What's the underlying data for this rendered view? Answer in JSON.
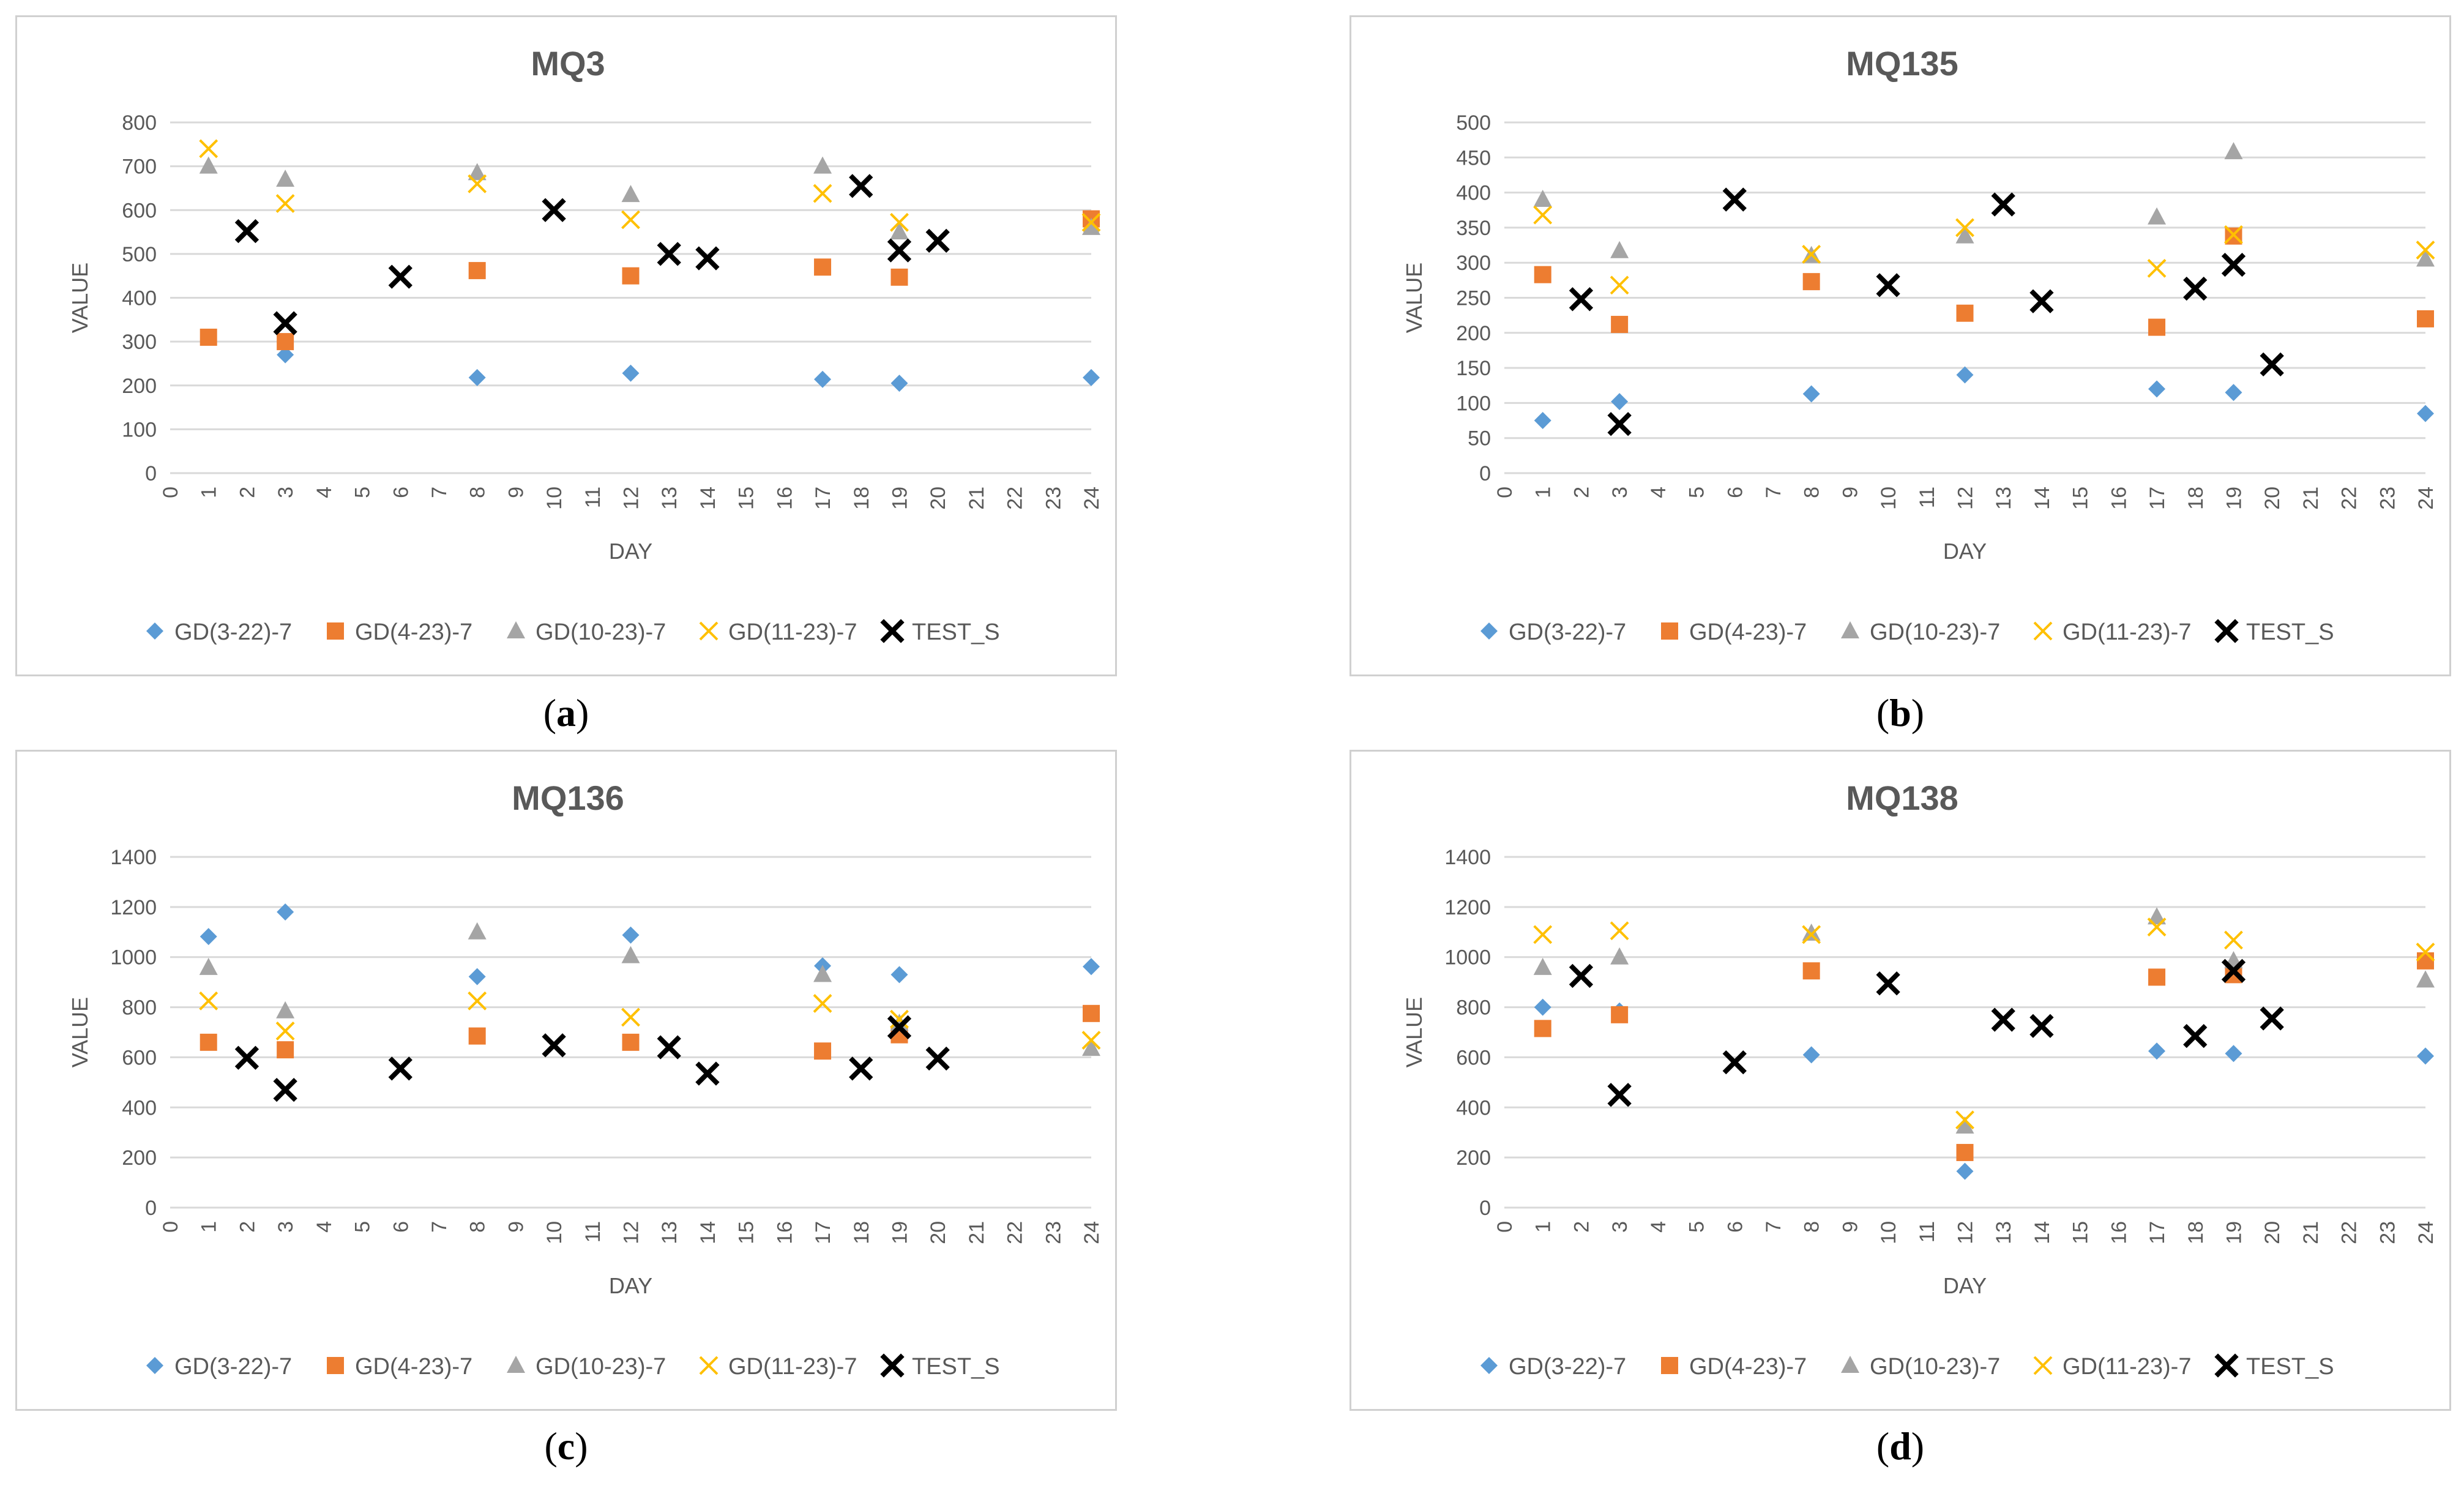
{
  "colors": {
    "series": [
      "#5B9BD5",
      "#ED7D31",
      "#A5A5A5",
      "#FFC000",
      "#000000"
    ],
    "grid": "#d9d9d9",
    "text": "#595959"
  },
  "chart_data": [
    {
      "type": "scatter",
      "caption_letter": "a",
      "title": "MQ3",
      "xlabel": "DAY",
      "ylabel": "VALUE",
      "xlim": [
        0,
        24
      ],
      "ylim": [
        0,
        800
      ],
      "ystep": 100,
      "legend_position": "bottom",
      "series": [
        {
          "name": "GD(3-22)-7",
          "marker": "diamond",
          "x": [
            3,
            8,
            12,
            17,
            19,
            24
          ],
          "y": [
            270,
            218,
            228,
            214,
            205,
            218
          ]
        },
        {
          "name": "GD(4-23)-7",
          "marker": "square",
          "x": [
            1,
            3,
            8,
            12,
            17,
            19,
            24
          ],
          "y": [
            310,
            300,
            462,
            450,
            470,
            447,
            580
          ]
        },
        {
          "name": "GD(10-23)-7",
          "marker": "triangle",
          "x": [
            1,
            3,
            8,
            12,
            17,
            19,
            24
          ],
          "y": [
            700,
            670,
            685,
            635,
            700,
            550,
            560
          ]
        },
        {
          "name": "GD(11-23)-7",
          "marker": "x",
          "x": [
            1,
            3,
            8,
            12,
            17,
            19,
            24
          ],
          "y": [
            740,
            615,
            660,
            578,
            638,
            572,
            572
          ]
        },
        {
          "name": "TEST_S",
          "marker": "cross",
          "x": [
            2,
            3,
            6,
            10,
            13,
            14,
            18,
            19,
            20
          ],
          "y": [
            552,
            342,
            448,
            600,
            500,
            490,
            655,
            508,
            530
          ]
        }
      ]
    },
    {
      "type": "scatter",
      "caption_letter": "b",
      "title": "MQ135",
      "xlabel": "DAY",
      "ylabel": "VALUE",
      "xlim": [
        0,
        24
      ],
      "ylim": [
        0,
        500
      ],
      "ystep": 50,
      "legend_position": "bottom",
      "series": [
        {
          "name": "GD(3-22)-7",
          "marker": "diamond",
          "x": [
            1,
            3,
            8,
            12,
            17,
            19,
            24
          ],
          "y": [
            75,
            102,
            113,
            140,
            120,
            115,
            85
          ]
        },
        {
          "name": "GD(4-23)-7",
          "marker": "square",
          "x": [
            1,
            3,
            8,
            12,
            17,
            19,
            24
          ],
          "y": [
            283,
            212,
            273,
            228,
            208,
            338,
            220
          ]
        },
        {
          "name": "GD(10-23)-7",
          "marker": "triangle",
          "x": [
            1,
            3,
            8,
            12,
            17,
            19,
            24
          ],
          "y": [
            390,
            317,
            310,
            338,
            365,
            458,
            305
          ]
        },
        {
          "name": "GD(11-23)-7",
          "marker": "x",
          "x": [
            1,
            3,
            8,
            12,
            17,
            19,
            24
          ],
          "y": [
            368,
            268,
            312,
            350,
            292,
            340,
            318
          ]
        },
        {
          "name": "TEST_S",
          "marker": "cross",
          "x": [
            2,
            3,
            6,
            10,
            13,
            14,
            18,
            19,
            20
          ],
          "y": [
            248,
            70,
            390,
            268,
            383,
            245,
            263,
            297,
            155
          ]
        }
      ]
    },
    {
      "type": "scatter",
      "caption_letter": "c",
      "title": "MQ136",
      "xlabel": "DAY",
      "ylabel": "VALUE",
      "xlim": [
        0,
        24
      ],
      "ylim": [
        0,
        1400
      ],
      "ystep": 200,
      "legend_position": "bottom",
      "series": [
        {
          "name": "GD(3-22)-7",
          "marker": "diamond",
          "x": [
            1,
            3,
            8,
            12,
            17,
            19,
            24
          ],
          "y": [
            1082,
            1180,
            922,
            1088,
            965,
            930,
            962
          ]
        },
        {
          "name": "GD(4-23)-7",
          "marker": "square",
          "x": [
            1,
            3,
            8,
            12,
            17,
            19,
            24
          ],
          "y": [
            660,
            630,
            685,
            660,
            625,
            690,
            775
          ]
        },
        {
          "name": "GD(10-23)-7",
          "marker": "triangle",
          "x": [
            1,
            3,
            8,
            12,
            17,
            19,
            24
          ],
          "y": [
            958,
            785,
            1100,
            1005,
            930,
            735,
            635
          ]
        },
        {
          "name": "GD(11-23)-7",
          "marker": "x",
          "x": [
            1,
            3,
            8,
            12,
            17,
            19,
            24
          ],
          "y": [
            825,
            705,
            825,
            760,
            815,
            752,
            668
          ]
        },
        {
          "name": "TEST_S",
          "marker": "cross",
          "x": [
            2,
            3,
            6,
            10,
            13,
            14,
            18,
            19,
            20
          ],
          "y": [
            598,
            470,
            555,
            648,
            640,
            535,
            555,
            720,
            595
          ]
        }
      ]
    },
    {
      "type": "scatter",
      "caption_letter": "d",
      "title": "MQ138",
      "xlabel": "DAY",
      "ylabel": "VALUE",
      "xlim": [
        0,
        24
      ],
      "ylim": [
        0,
        1400
      ],
      "ystep": 200,
      "legend_position": "bottom",
      "series": [
        {
          "name": "GD(3-22)-7",
          "marker": "diamond",
          "x": [
            1,
            3,
            8,
            12,
            17,
            19,
            24
          ],
          "y": [
            800,
            785,
            610,
            145,
            625,
            615,
            605
          ]
        },
        {
          "name": "GD(4-23)-7",
          "marker": "square",
          "x": [
            1,
            3,
            8,
            12,
            17,
            19,
            24
          ],
          "y": [
            715,
            770,
            945,
            220,
            920,
            930,
            985
          ]
        },
        {
          "name": "GD(10-23)-7",
          "marker": "triangle",
          "x": [
            1,
            3,
            8,
            12,
            17,
            19,
            24
          ],
          "y": [
            958,
            1000,
            1095,
            325,
            1160,
            985,
            908
          ]
        },
        {
          "name": "GD(11-23)-7",
          "marker": "x",
          "x": [
            1,
            3,
            8,
            12,
            17,
            19,
            24
          ],
          "y": [
            1090,
            1105,
            1090,
            350,
            1120,
            1068,
            1020
          ]
        },
        {
          "name": "TEST_S",
          "marker": "cross",
          "x": [
            2,
            3,
            6,
            10,
            13,
            14,
            18,
            19,
            20
          ],
          "y": [
            925,
            450,
            580,
            895,
            750,
            725,
            685,
            945,
            755
          ]
        }
      ]
    }
  ]
}
